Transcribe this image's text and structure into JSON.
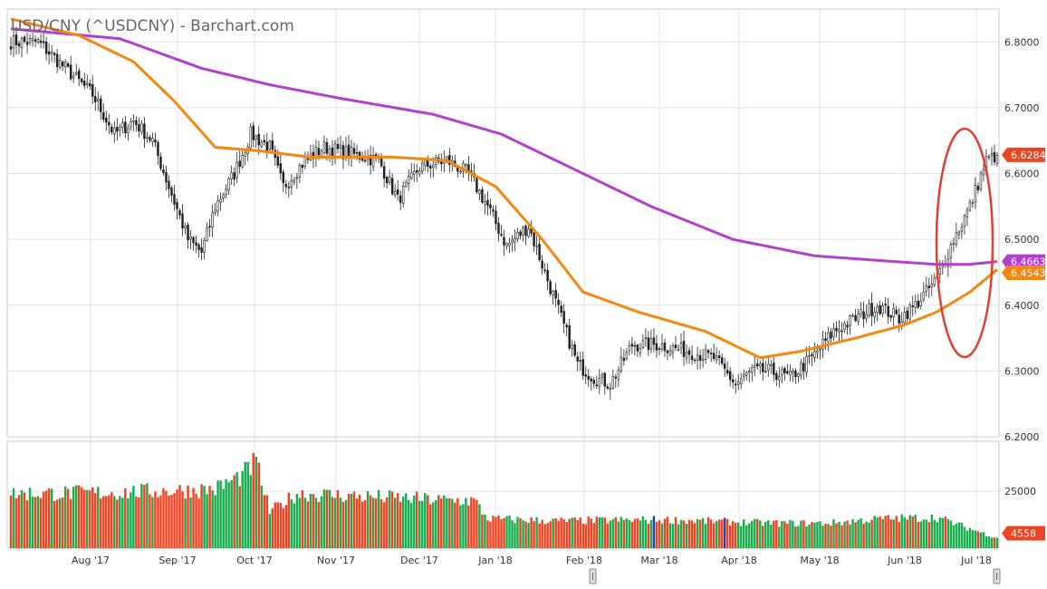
{
  "chart_data": {
    "type": "candlestick",
    "title": "USD/CNY (^USDCNY) - Barchart.com",
    "x_ticks": [
      "Aug '17",
      "Sep '17",
      "Oct '17",
      "Nov '17",
      "Dec '17",
      "Jan '18",
      "Feb '18",
      "Mar '18",
      "Apr '18",
      "May '18",
      "Jun '18",
      "Jul '18"
    ],
    "price_axis": {
      "ylim": [
        6.2,
        6.85
      ],
      "ticks": [
        "6.8000",
        "6.7000",
        "6.6000",
        "6.5000",
        "6.4000",
        "6.3000",
        "6.2000"
      ],
      "tick_values": [
        6.8,
        6.7,
        6.6,
        6.5,
        6.4,
        6.3,
        6.2
      ]
    },
    "volume_axis": {
      "ylim": [
        0,
        47000
      ],
      "ticks": [
        "25000"
      ],
      "tick_values": [
        25000
      ]
    },
    "colors": {
      "up": "#1aad4f",
      "down": "#ee4422",
      "ma_short": "#f5860f",
      "ma_long": "#b23fcf",
      "annotation": "#e04030",
      "special_volume": "#1f3fbf"
    },
    "last_price": {
      "label": "6.6284",
      "value": 6.6284
    },
    "ma_long_last": {
      "label": "6.4663",
      "value": 6.4663
    },
    "ma_short_last": {
      "label": "6.4543",
      "value": 6.4543
    },
    "last_volume": {
      "label": "4558",
      "value": 4558
    },
    "close_anchors": [
      [
        0,
        6.8
      ],
      [
        10,
        6.8
      ],
      [
        20,
        6.76
      ],
      [
        30,
        6.72
      ],
      [
        38,
        6.66
      ],
      [
        45,
        6.68
      ],
      [
        52,
        6.65
      ],
      [
        58,
        6.58
      ],
      [
        65,
        6.5
      ],
      [
        70,
        6.48
      ],
      [
        75,
        6.55
      ],
      [
        82,
        6.6
      ],
      [
        88,
        6.66
      ],
      [
        95,
        6.64
      ],
      [
        100,
        6.58
      ],
      [
        108,
        6.62
      ],
      [
        115,
        6.64
      ],
      [
        125,
        6.63
      ],
      [
        135,
        6.62
      ],
      [
        142,
        6.56
      ],
      [
        150,
        6.61
      ],
      [
        160,
        6.62
      ],
      [
        168,
        6.6
      ],
      [
        175,
        6.55
      ],
      [
        182,
        6.49
      ],
      [
        190,
        6.52
      ],
      [
        196,
        6.45
      ],
      [
        202,
        6.38
      ],
      [
        208,
        6.31
      ],
      [
        214,
        6.29
      ],
      [
        220,
        6.28
      ],
      [
        228,
        6.34
      ],
      [
        238,
        6.34
      ],
      [
        248,
        6.33
      ],
      [
        258,
        6.32
      ],
      [
        266,
        6.28
      ],
      [
        272,
        6.3
      ],
      [
        278,
        6.3
      ],
      [
        286,
        6.29
      ],
      [
        294,
        6.32
      ],
      [
        302,
        6.36
      ],
      [
        310,
        6.38
      ],
      [
        318,
        6.4
      ],
      [
        326,
        6.38
      ],
      [
        332,
        6.4
      ],
      [
        340,
        6.44
      ],
      [
        346,
        6.5
      ],
      [
        352,
        6.55
      ],
      [
        358,
        6.62
      ],
      [
        362,
        6.628
      ]
    ],
    "ma_short": [
      [
        0,
        6.835
      ],
      [
        25,
        6.81
      ],
      [
        45,
        6.77
      ],
      [
        60,
        6.71
      ],
      [
        75,
        6.64
      ],
      [
        90,
        6.635
      ],
      [
        110,
        6.625
      ],
      [
        140,
        6.625
      ],
      [
        160,
        6.62
      ],
      [
        178,
        6.58
      ],
      [
        195,
        6.5
      ],
      [
        210,
        6.42
      ],
      [
        230,
        6.39
      ],
      [
        255,
        6.36
      ],
      [
        275,
        6.32
      ],
      [
        290,
        6.33
      ],
      [
        310,
        6.35
      ],
      [
        328,
        6.37
      ],
      [
        340,
        6.39
      ],
      [
        352,
        6.42
      ],
      [
        362,
        6.4543
      ]
    ],
    "ma_long": [
      [
        0,
        6.82
      ],
      [
        40,
        6.805
      ],
      [
        70,
        6.76
      ],
      [
        95,
        6.735
      ],
      [
        120,
        6.715
      ],
      [
        155,
        6.69
      ],
      [
        180,
        6.66
      ],
      [
        205,
        6.61
      ],
      [
        235,
        6.55
      ],
      [
        265,
        6.5
      ],
      [
        295,
        6.475
      ],
      [
        325,
        6.466
      ],
      [
        340,
        6.462
      ],
      [
        352,
        6.462
      ],
      [
        362,
        6.4663
      ]
    ],
    "volume_anchors": [
      [
        0,
        24000
      ],
      [
        40,
        24500
      ],
      [
        75,
        26000
      ],
      [
        85,
        32000
      ],
      [
        90,
        38000
      ],
      [
        95,
        16000
      ],
      [
        105,
        24000
      ],
      [
        145,
        22000
      ],
      [
        160,
        21000
      ],
      [
        170,
        21000
      ],
      [
        175,
        13000
      ],
      [
        200,
        12000
      ],
      [
        240,
        12500
      ],
      [
        280,
        11000
      ],
      [
        300,
        11000
      ],
      [
        320,
        13000
      ],
      [
        340,
        13500
      ],
      [
        362,
        4558
      ]
    ]
  }
}
